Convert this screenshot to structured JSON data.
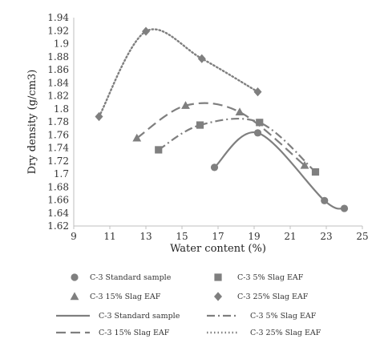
{
  "chart_data": {
    "type": "scatter",
    "title": "",
    "xlabel": "Water content (%)",
    "ylabel": "Dry density (g/cm3)",
    "xlim": [
      9,
      25
    ],
    "ylim": [
      1.62,
      1.94
    ],
    "xticks": [
      9,
      11,
      13,
      15,
      17,
      19,
      21,
      23,
      25
    ],
    "yticks": [
      1.62,
      1.64,
      1.66,
      1.68,
      1.7,
      1.72,
      1.74,
      1.76,
      1.78,
      1.8,
      1.82,
      1.84,
      1.86,
      1.88,
      1.9,
      1.92,
      1.94
    ],
    "grid": false,
    "legend_position": "bottom",
    "series": [
      {
        "name": "C-3 Standard sample",
        "marker": "circle",
        "line_style": "solid",
        "line_name": "C-3 Standard sample",
        "points": [
          [
            16.8,
            1.71
          ],
          [
            19.2,
            1.763
          ],
          [
            22.9,
            1.659
          ],
          [
            24.0,
            1.647
          ]
        ]
      },
      {
        "name": "C-3 5% Slag EAF",
        "marker": "square",
        "line_style": "dash-dot",
        "line_name": "C-3 5% Slag EAF",
        "points": [
          [
            13.7,
            1.737
          ],
          [
            16.0,
            1.775
          ],
          [
            19.3,
            1.779
          ],
          [
            22.4,
            1.703
          ]
        ]
      },
      {
        "name": "C-3 15% Slag EAF",
        "marker": "triangle",
        "line_style": "dashed",
        "line_name": "C-3 15% Slag EAF",
        "points": [
          [
            12.5,
            1.755
          ],
          [
            15.2,
            1.805
          ],
          [
            18.2,
            1.795
          ],
          [
            21.8,
            1.713
          ]
        ]
      },
      {
        "name": "C-3 25% Slag EAF",
        "marker": "diamond",
        "line_style": "dotted",
        "line_name": "C-3 25% Slag EAF",
        "points": [
          [
            10.4,
            1.788
          ],
          [
            13.0,
            1.919
          ],
          [
            16.1,
            1.877
          ],
          [
            19.2,
            1.826
          ]
        ]
      }
    ]
  }
}
